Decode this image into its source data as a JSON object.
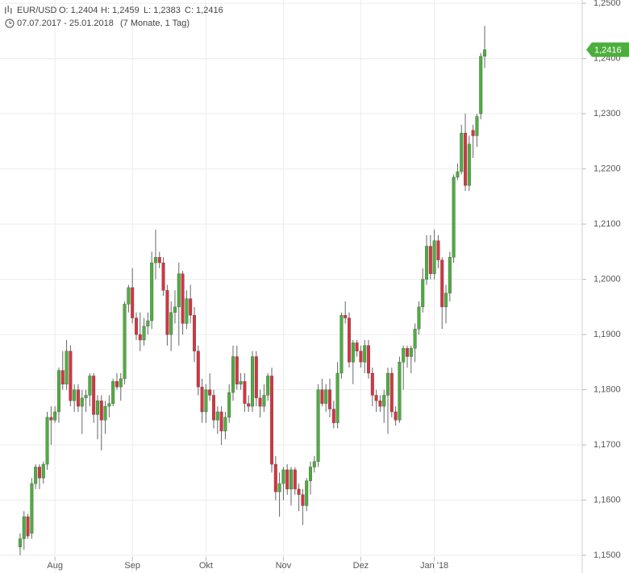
{
  "chart_data": {
    "type": "candlestick",
    "title": "EUR/USD",
    "ohlc": [
      "O: 1,2404",
      "H: 1,2459",
      "L: 1,2383",
      "C: 1,2416"
    ],
    "period": "07.07.2017 - 25.01.2018",
    "duration": "(7 Monate, 1 Tag)",
    "up_color": "#4caf3c",
    "down_color": "#d9333f",
    "grid": true,
    "xlim": [
      -5.2,
      145.2
    ],
    "xticks": [
      {
        "value": 9,
        "label": "Aug"
      },
      {
        "value": 29,
        "label": "Sep"
      },
      {
        "value": 48,
        "label": "Okt"
      },
      {
        "value": 68,
        "label": "Nov"
      },
      {
        "value": 88,
        "label": "Dez"
      },
      {
        "value": 107,
        "label": "Jan '18"
      }
    ],
    "ylim": [
      1.1468,
      1.2506
    ],
    "yticks": [
      {
        "value": 1.15,
        "label": "1,1500"
      },
      {
        "value": 1.16,
        "label": "1,1600"
      },
      {
        "value": 1.17,
        "label": "1,1700"
      },
      {
        "value": 1.18,
        "label": "1,1800"
      },
      {
        "value": 1.19,
        "label": "1,1900"
      },
      {
        "value": 1.2,
        "label": "1,2000"
      },
      {
        "value": 1.21,
        "label": "1,2100"
      },
      {
        "value": 1.22,
        "label": "1,2200"
      },
      {
        "value": 1.23,
        "label": "1,2300"
      },
      {
        "value": 1.24,
        "label": "1,2400"
      },
      {
        "value": 1.25,
        "label": "1,2500"
      }
    ],
    "last_value": {
      "value": 1.2416,
      "label": "1,2416"
    },
    "open": [
      1.1515,
      1.153,
      1.157,
      1.154,
      1.163,
      1.166,
      1.164,
      1.1665,
      1.175,
      1.1745,
      1.176,
      1.1835,
      1.181,
      1.187,
      1.178,
      1.18,
      1.177,
      1.1785,
      1.179,
      1.1825,
      1.1755,
      1.178,
      1.1745,
      1.177,
      1.1775,
      1.1815,
      1.1805,
      1.182,
      1.1955,
      1.1985,
      1.193,
      1.19,
      1.189,
      1.1915,
      1.1925,
      1.203,
      1.204,
      1.203,
      1.198,
      1.19,
      1.194,
      1.195,
      1.201,
      1.192,
      1.1965,
      1.1935,
      1.187,
      1.1805,
      1.176,
      1.18,
      1.179,
      1.1745,
      1.176,
      1.1725,
      1.175,
      1.1795,
      1.186,
      1.181,
      1.1815,
      1.1775,
      1.177,
      1.186,
      1.1785,
      1.177,
      1.179,
      1.1825,
      1.1665,
      1.1615,
      1.163,
      1.1655,
      1.162,
      1.1655,
      1.162,
      1.161,
      1.159,
      1.1635,
      1.166,
      1.167,
      1.18,
      1.1775,
      1.18,
      1.1765,
      1.174,
      1.183,
      1.1935,
      1.193,
      1.185,
      1.1885,
      1.187,
      1.185,
      1.188,
      1.183,
      1.179,
      1.178,
      1.177,
      1.179,
      1.183,
      1.176,
      1.1745,
      1.185,
      1.1875,
      1.186,
      1.1875,
      1.191,
      1.195,
      1.2,
      1.206,
      1.201,
      1.207,
      1.2035,
      1.195,
      1.1975,
      1.204,
      1.2185,
      1.2195,
      1.2265,
      1.217,
      1.227,
      1.226,
      1.23,
      1.2404
    ],
    "high": [
      1.154,
      1.158,
      1.1575,
      1.164,
      1.1665,
      1.1665,
      1.167,
      1.176,
      1.177,
      1.177,
      1.184,
      1.187,
      1.189,
      1.188,
      1.181,
      1.181,
      1.18,
      1.18,
      1.183,
      1.183,
      1.179,
      1.179,
      1.178,
      1.179,
      1.182,
      1.183,
      1.183,
      1.196,
      1.199,
      1.202,
      1.194,
      1.194,
      1.193,
      1.194,
      1.205,
      1.209,
      1.205,
      1.204,
      1.199,
      1.196,
      1.198,
      1.203,
      1.2015,
      1.198,
      1.199,
      1.195,
      1.188,
      1.182,
      1.181,
      1.183,
      1.18,
      1.177,
      1.177,
      1.176,
      1.181,
      1.188,
      1.188,
      1.183,
      1.183,
      1.179,
      1.187,
      1.187,
      1.18,
      1.181,
      1.183,
      1.184,
      1.168,
      1.165,
      1.166,
      1.1665,
      1.166,
      1.166,
      1.163,
      1.162,
      1.164,
      1.167,
      1.168,
      1.181,
      1.182,
      1.181,
      1.182,
      1.178,
      1.185,
      1.194,
      1.196,
      1.194,
      1.189,
      1.189,
      1.188,
      1.189,
      1.189,
      1.184,
      1.18,
      1.179,
      1.18,
      1.184,
      1.184,
      1.177,
      1.186,
      1.188,
      1.188,
      1.188,
      1.192,
      1.196,
      1.202,
      1.208,
      1.208,
      1.209,
      1.208,
      1.204,
      1.199,
      1.205,
      1.219,
      1.221,
      1.228,
      1.23,
      1.226,
      1.228,
      1.23,
      1.241,
      1.2459
    ],
    "low": [
      1.15,
      1.151,
      1.153,
      1.153,
      1.162,
      1.162,
      1.163,
      1.1655,
      1.17,
      1.174,
      1.174,
      1.18,
      1.18,
      1.177,
      1.176,
      1.176,
      1.172,
      1.176,
      1.177,
      1.174,
      1.171,
      1.169,
      1.172,
      1.175,
      1.177,
      1.18,
      1.178,
      1.181,
      1.194,
      1.192,
      1.189,
      1.187,
      1.188,
      1.19,
      1.191,
      1.2,
      1.202,
      1.197,
      1.188,
      1.187,
      1.192,
      1.188,
      1.19,
      1.191,
      1.192,
      1.185,
      1.179,
      1.174,
      1.174,
      1.178,
      1.173,
      1.172,
      1.17,
      1.171,
      1.174,
      1.178,
      1.18,
      1.18,
      1.176,
      1.176,
      1.176,
      1.177,
      1.175,
      1.176,
      1.178,
      1.165,
      1.16,
      1.157,
      1.16,
      1.161,
      1.159,
      1.161,
      1.158,
      1.1555,
      1.158,
      1.161,
      1.165,
      1.166,
      1.177,
      1.176,
      1.175,
      1.173,
      1.173,
      1.182,
      1.192,
      1.184,
      1.181,
      1.186,
      1.184,
      1.183,
      1.182,
      1.177,
      1.176,
      1.176,
      1.174,
      1.172,
      1.175,
      1.1735,
      1.174,
      1.18,
      1.184,
      1.183,
      1.185,
      1.19,
      1.194,
      1.199,
      1.2,
      1.2,
      1.202,
      1.191,
      1.192,
      1.196,
      1.203,
      1.218,
      1.219,
      1.216,
      1.216,
      1.222,
      1.224,
      1.229,
      1.2383
    ],
    "close": [
      1.153,
      1.157,
      1.1535,
      1.163,
      1.166,
      1.164,
      1.1665,
      1.175,
      1.1745,
      1.176,
      1.1835,
      1.181,
      1.187,
      1.178,
      1.18,
      1.177,
      1.1785,
      1.179,
      1.1825,
      1.1755,
      1.178,
      1.1745,
      1.177,
      1.1775,
      1.1815,
      1.1805,
      1.182,
      1.1955,
      1.1985,
      1.193,
      1.19,
      1.189,
      1.1915,
      1.1925,
      1.203,
      1.204,
      1.203,
      1.198,
      1.19,
      1.194,
      1.195,
      1.201,
      1.192,
      1.1965,
      1.1935,
      1.187,
      1.1805,
      1.176,
      1.18,
      1.179,
      1.1745,
      1.176,
      1.1725,
      1.175,
      1.1795,
      1.186,
      1.181,
      1.1815,
      1.1775,
      1.177,
      1.186,
      1.1785,
      1.177,
      1.179,
      1.1825,
      1.1665,
      1.1615,
      1.163,
      1.1655,
      1.162,
      1.1655,
      1.162,
      1.161,
      1.159,
      1.1635,
      1.166,
      1.167,
      1.18,
      1.1775,
      1.18,
      1.1765,
      1.174,
      1.183,
      1.1935,
      1.193,
      1.185,
      1.1885,
      1.187,
      1.185,
      1.188,
      1.183,
      1.179,
      1.178,
      1.177,
      1.179,
      1.183,
      1.176,
      1.1745,
      1.185,
      1.1875,
      1.186,
      1.1875,
      1.191,
      1.195,
      1.2,
      1.206,
      1.201,
      1.207,
      1.2035,
      1.195,
      1.1975,
      1.204,
      1.2185,
      1.2195,
      1.2265,
      1.217,
      1.2245,
      1.226,
      1.2295,
      1.2404,
      1.2416
    ]
  }
}
